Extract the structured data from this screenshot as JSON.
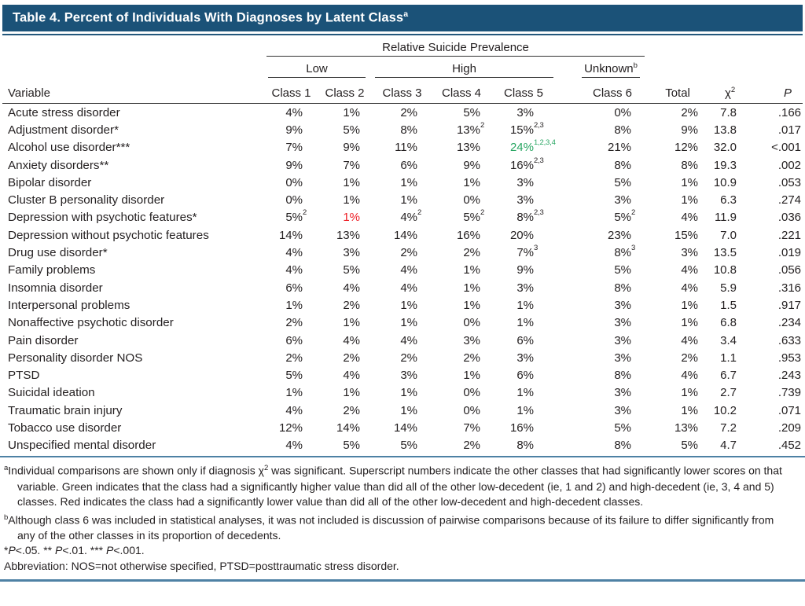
{
  "title": {
    "text": "Table 4. Percent of Individuals With Diagnoses by Latent Class",
    "superscript": "a"
  },
  "colors": {
    "title_bar": "#1b5278",
    "blue_rule": "#4e81a4",
    "significant_higher_green": "#28a662",
    "significant_lower_red": "#ed1c24",
    "text": "#231f20"
  },
  "header": {
    "spanner_top": "Relative Suicide Prevalence",
    "groups": [
      {
        "label": "Low",
        "superscript": ""
      },
      {
        "label": "High",
        "superscript": ""
      },
      {
        "label": "Unknown",
        "superscript": "b"
      }
    ],
    "columns": [
      "Variable",
      "Class 1",
      "Class 2",
      "Class 3",
      "Class 4",
      "Class 5",
      "Class 6",
      "Total",
      "χ2",
      "P"
    ]
  },
  "table": {
    "rows": [
      {
        "variable": "Acute stress disorder",
        "cells": [
          {
            "v": "4%"
          },
          {
            "v": "1%"
          },
          {
            "v": "2%"
          },
          {
            "v": "5%"
          },
          {
            "v": "3%"
          },
          {
            "v": "0%"
          }
        ],
        "total": "2%",
        "chi2": "7.8",
        "p": ".166"
      },
      {
        "variable": "Adjustment disorder*",
        "cells": [
          {
            "v": "9%"
          },
          {
            "v": "5%"
          },
          {
            "v": "8%"
          },
          {
            "v": "13%",
            "sup": "2"
          },
          {
            "v": "15%",
            "sup": "2,3"
          },
          {
            "v": "8%"
          }
        ],
        "total": "9%",
        "chi2": "13.8",
        "p": ".017"
      },
      {
        "variable": "Alcohol use disorder***",
        "cells": [
          {
            "v": "7%"
          },
          {
            "v": "9%"
          },
          {
            "v": "11%"
          },
          {
            "v": "13%"
          },
          {
            "v": "24%",
            "sup": "1,2,3,4",
            "c": "green"
          },
          {
            "v": "21%"
          }
        ],
        "total": "12%",
        "chi2": "32.0",
        "p": "<.001"
      },
      {
        "variable": "Anxiety disorders**",
        "cells": [
          {
            "v": "9%"
          },
          {
            "v": "7%"
          },
          {
            "v": "6%"
          },
          {
            "v": "9%"
          },
          {
            "v": "16%",
            "sup": "2,3"
          },
          {
            "v": "8%"
          }
        ],
        "total": "8%",
        "chi2": "19.3",
        "p": ".002"
      },
      {
        "variable": "Bipolar disorder",
        "cells": [
          {
            "v": "0%"
          },
          {
            "v": "1%"
          },
          {
            "v": "1%"
          },
          {
            "v": "1%"
          },
          {
            "v": "3%"
          },
          {
            "v": "5%"
          }
        ],
        "total": "1%",
        "chi2": "10.9",
        "p": ".053"
      },
      {
        "variable": "Cluster B personality disorder",
        "cells": [
          {
            "v": "0%"
          },
          {
            "v": "1%"
          },
          {
            "v": "1%"
          },
          {
            "v": "0%"
          },
          {
            "v": "3%"
          },
          {
            "v": "3%"
          }
        ],
        "total": "1%",
        "chi2": "6.3",
        "p": ".274"
      },
      {
        "variable": "Depression with psychotic features*",
        "cells": [
          {
            "v": "5%",
            "sup": "2"
          },
          {
            "v": "1%",
            "c": "red"
          },
          {
            "v": "4%",
            "sup": "2"
          },
          {
            "v": "5%",
            "sup": "2"
          },
          {
            "v": "8%",
            "sup": "2,3"
          },
          {
            "v": "5%",
            "sup": "2"
          }
        ],
        "total": "4%",
        "chi2": "11.9",
        "p": ".036"
      },
      {
        "variable": "Depression without psychotic features",
        "cells": [
          {
            "v": "14%"
          },
          {
            "v": "13%"
          },
          {
            "v": "14%"
          },
          {
            "v": "16%"
          },
          {
            "v": "20%"
          },
          {
            "v": "23%"
          }
        ],
        "total": "15%",
        "chi2": "7.0",
        "p": ".221"
      },
      {
        "variable": "Drug use disorder*",
        "cells": [
          {
            "v": "4%"
          },
          {
            "v": "3%"
          },
          {
            "v": "2%"
          },
          {
            "v": "2%"
          },
          {
            "v": "7%",
            "sup": "3"
          },
          {
            "v": "8%",
            "sup": "3"
          }
        ],
        "total": "3%",
        "chi2": "13.5",
        "p": ".019"
      },
      {
        "variable": "Family problems",
        "cells": [
          {
            "v": "4%"
          },
          {
            "v": "5%"
          },
          {
            "v": "4%"
          },
          {
            "v": "1%"
          },
          {
            "v": "9%"
          },
          {
            "v": "5%"
          }
        ],
        "total": "4%",
        "chi2": "10.8",
        "p": ".056"
      },
      {
        "variable": "Insomnia disorder",
        "cells": [
          {
            "v": "6%"
          },
          {
            "v": "4%"
          },
          {
            "v": "4%"
          },
          {
            "v": "1%"
          },
          {
            "v": "3%"
          },
          {
            "v": "8%"
          }
        ],
        "total": "4%",
        "chi2": "5.9",
        "p": ".316"
      },
      {
        "variable": "Interpersonal problems",
        "cells": [
          {
            "v": "1%"
          },
          {
            "v": "2%"
          },
          {
            "v": "1%"
          },
          {
            "v": "1%"
          },
          {
            "v": "1%"
          },
          {
            "v": "3%"
          }
        ],
        "total": "1%",
        "chi2": "1.5",
        "p": ".917"
      },
      {
        "variable": "Nonaffective psychotic disorder",
        "cells": [
          {
            "v": "2%"
          },
          {
            "v": "1%"
          },
          {
            "v": "1%"
          },
          {
            "v": "0%"
          },
          {
            "v": "1%"
          },
          {
            "v": "3%"
          }
        ],
        "total": "1%",
        "chi2": "6.8",
        "p": ".234"
      },
      {
        "variable": "Pain disorder",
        "cells": [
          {
            "v": "6%"
          },
          {
            "v": "4%"
          },
          {
            "v": "4%"
          },
          {
            "v": "3%"
          },
          {
            "v": "6%"
          },
          {
            "v": "3%"
          }
        ],
        "total": "4%",
        "chi2": "3.4",
        "p": ".633"
      },
      {
        "variable": "Personality disorder NOS",
        "cells": [
          {
            "v": "2%"
          },
          {
            "v": "2%"
          },
          {
            "v": "2%"
          },
          {
            "v": "2%"
          },
          {
            "v": "3%"
          },
          {
            "v": "3%"
          }
        ],
        "total": "2%",
        "chi2": "1.1",
        "p": ".953"
      },
      {
        "variable": "PTSD",
        "cells": [
          {
            "v": "5%"
          },
          {
            "v": "4%"
          },
          {
            "v": "3%"
          },
          {
            "v": "1%"
          },
          {
            "v": "6%"
          },
          {
            "v": "8%"
          }
        ],
        "total": "4%",
        "chi2": "6.7",
        "p": ".243"
      },
      {
        "variable": "Suicidal ideation",
        "cells": [
          {
            "v": "1%"
          },
          {
            "v": "1%"
          },
          {
            "v": "1%"
          },
          {
            "v": "0%"
          },
          {
            "v": "1%"
          },
          {
            "v": "3%"
          }
        ],
        "total": "1%",
        "chi2": "2.7",
        "p": ".739"
      },
      {
        "variable": "Traumatic brain injury",
        "cells": [
          {
            "v": "4%"
          },
          {
            "v": "2%"
          },
          {
            "v": "1%"
          },
          {
            "v": "0%"
          },
          {
            "v": "1%"
          },
          {
            "v": "3%"
          }
        ],
        "total": "1%",
        "chi2": "10.2",
        "p": ".071"
      },
      {
        "variable": "Tobacco use disorder",
        "cells": [
          {
            "v": "12%"
          },
          {
            "v": "14%"
          },
          {
            "v": "14%"
          },
          {
            "v": "7%"
          },
          {
            "v": "16%"
          },
          {
            "v": "5%"
          }
        ],
        "total": "13%",
        "chi2": "7.2",
        "p": ".209"
      },
      {
        "variable": "Unspecified mental disorder",
        "cells": [
          {
            "v": "4%"
          },
          {
            "v": "5%"
          },
          {
            "v": "5%"
          },
          {
            "v": "2%"
          },
          {
            "v": "8%"
          },
          {
            "v": "8%"
          }
        ],
        "total": "5%",
        "chi2": "4.7",
        "p": ".452"
      }
    ]
  },
  "footnotes": [
    {
      "marker": "a",
      "text": "Individual comparisons are shown only if diagnosis χ2 was significant. Superscript numbers indicate the other classes that had significantly lower scores on that variable. Green indicates that the class had a significantly higher value than did all of the other low-decedent (ie, 1 and 2) and high-decedent (ie, 3, 4 and 5) classes. Red indicates the class had a significantly lower value than did all of the other low-decedent and high-decedent classes."
    },
    {
      "marker": "b",
      "text": "Although class 6 was included in statistical analyses, it was not included is discussion of pairwise comparisons because of its failure to differ significantly from any of the other classes in its proportion of decedents."
    },
    {
      "marker": "",
      "text": "*P<.05. ** P<.01. *** P<.001."
    },
    {
      "marker": "",
      "text": "Abbreviation: NOS=not otherwise specified, PTSD=posttraumatic stress disorder."
    }
  ]
}
